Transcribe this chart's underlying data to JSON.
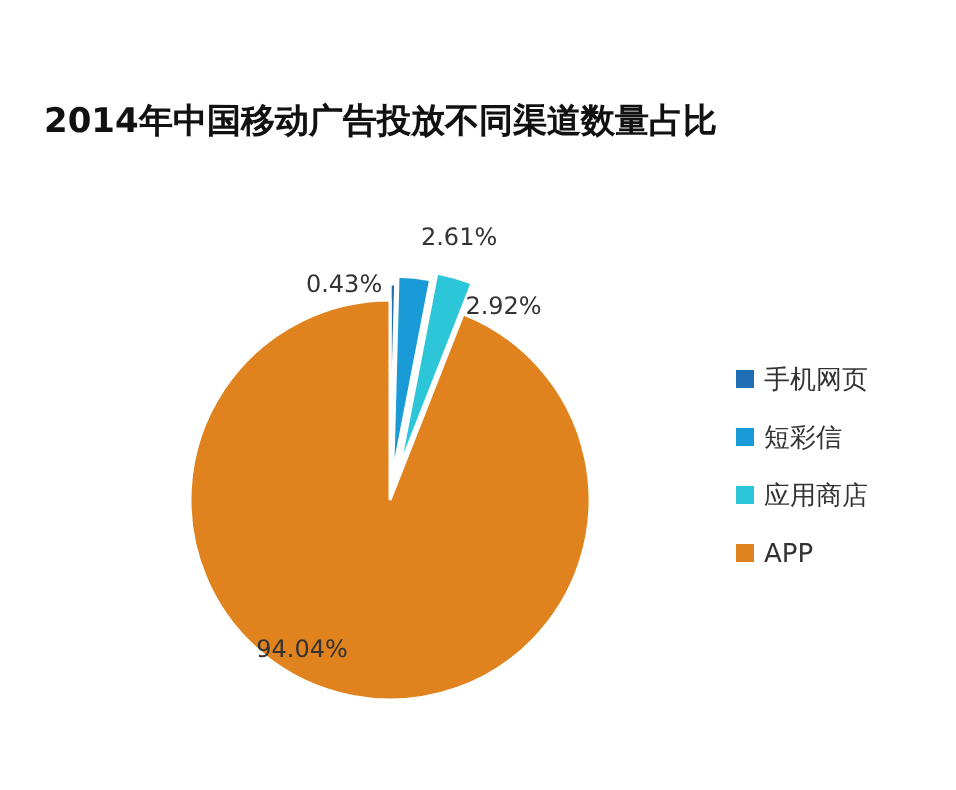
{
  "chart_data": {
    "type": "pie",
    "title": "2014年中国移动广告投放不同渠道数量占比",
    "categories": [
      "手机网页",
      "短彩信",
      "应用商店",
      "APP"
    ],
    "values": [
      0.43,
      2.61,
      2.92,
      94.04
    ],
    "colors": [
      "#1f6db3",
      "#1a9bd7",
      "#2cc6d8",
      "#e0821e"
    ],
    "value_labels": [
      "0.43%",
      "2.61%",
      "2.92%",
      "94.04%"
    ],
    "legend": "right"
  }
}
